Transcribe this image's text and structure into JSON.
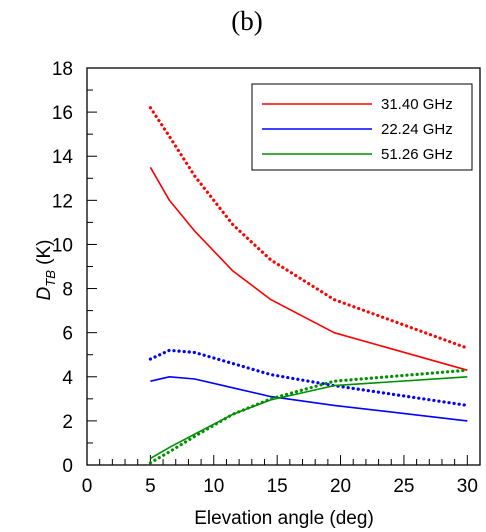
{
  "panel_label": "(b)",
  "chart_data": {
    "type": "line",
    "xlabel": "Elevation angle (deg)",
    "ylabel": {
      "main": "D",
      "sub": "TB",
      "rest": " (K)"
    },
    "xlim": [
      0,
      31
    ],
    "ylim": [
      0,
      18
    ],
    "xticks": [
      0,
      5,
      10,
      15,
      20,
      25,
      30
    ],
    "yticks": [
      0,
      2,
      4,
      6,
      8,
      10,
      12,
      14,
      16,
      18
    ],
    "legend_position": "top-right",
    "legend": [
      {
        "label": "31.40 GHz",
        "color": "#ff0000"
      },
      {
        "label": "22.24 GHz",
        "color": "#0000ff"
      },
      {
        "label": "51.26 GHz",
        "color": "#008f00"
      }
    ],
    "series": [
      {
        "color": "#ff0000",
        "style": "solid",
        "x": [
          5,
          6.5,
          8.5,
          11.5,
          14.5,
          19.5,
          30
        ],
        "y": [
          13.5,
          12.0,
          10.6,
          8.8,
          7.5,
          6.0,
          4.3
        ]
      },
      {
        "color": "#ff0000",
        "style": "dotted",
        "x": [
          5,
          6.5,
          8.5,
          11.5,
          14.5,
          19.5,
          30
        ],
        "y": [
          16.2,
          14.9,
          13.1,
          10.9,
          9.3,
          7.5,
          5.3
        ]
      },
      {
        "color": "#0000ff",
        "style": "solid",
        "x": [
          5,
          6.5,
          8.5,
          11.5,
          14.5,
          19.5,
          30
        ],
        "y": [
          3.8,
          4.0,
          3.9,
          3.5,
          3.1,
          2.7,
          2.0
        ]
      },
      {
        "color": "#0000ff",
        "style": "dotted",
        "x": [
          5,
          6.5,
          8.5,
          11.5,
          14.5,
          19.5,
          30
        ],
        "y": [
          4.8,
          5.2,
          5.1,
          4.6,
          4.1,
          3.6,
          2.7
        ]
      },
      {
        "color": "#008f00",
        "style": "solid",
        "x": [
          5,
          6.5,
          8.5,
          11.5,
          14.5,
          19.5,
          30
        ],
        "y": [
          0.3,
          0.8,
          1.4,
          2.3,
          2.95,
          3.6,
          4.0
        ]
      },
      {
        "color": "#008f00",
        "style": "dotted",
        "x": [
          5,
          6.5,
          8.5,
          11.5,
          14.5,
          19.5,
          30
        ],
        "y": [
          0.1,
          0.6,
          1.3,
          2.3,
          3.0,
          3.8,
          4.3
        ]
      }
    ]
  }
}
